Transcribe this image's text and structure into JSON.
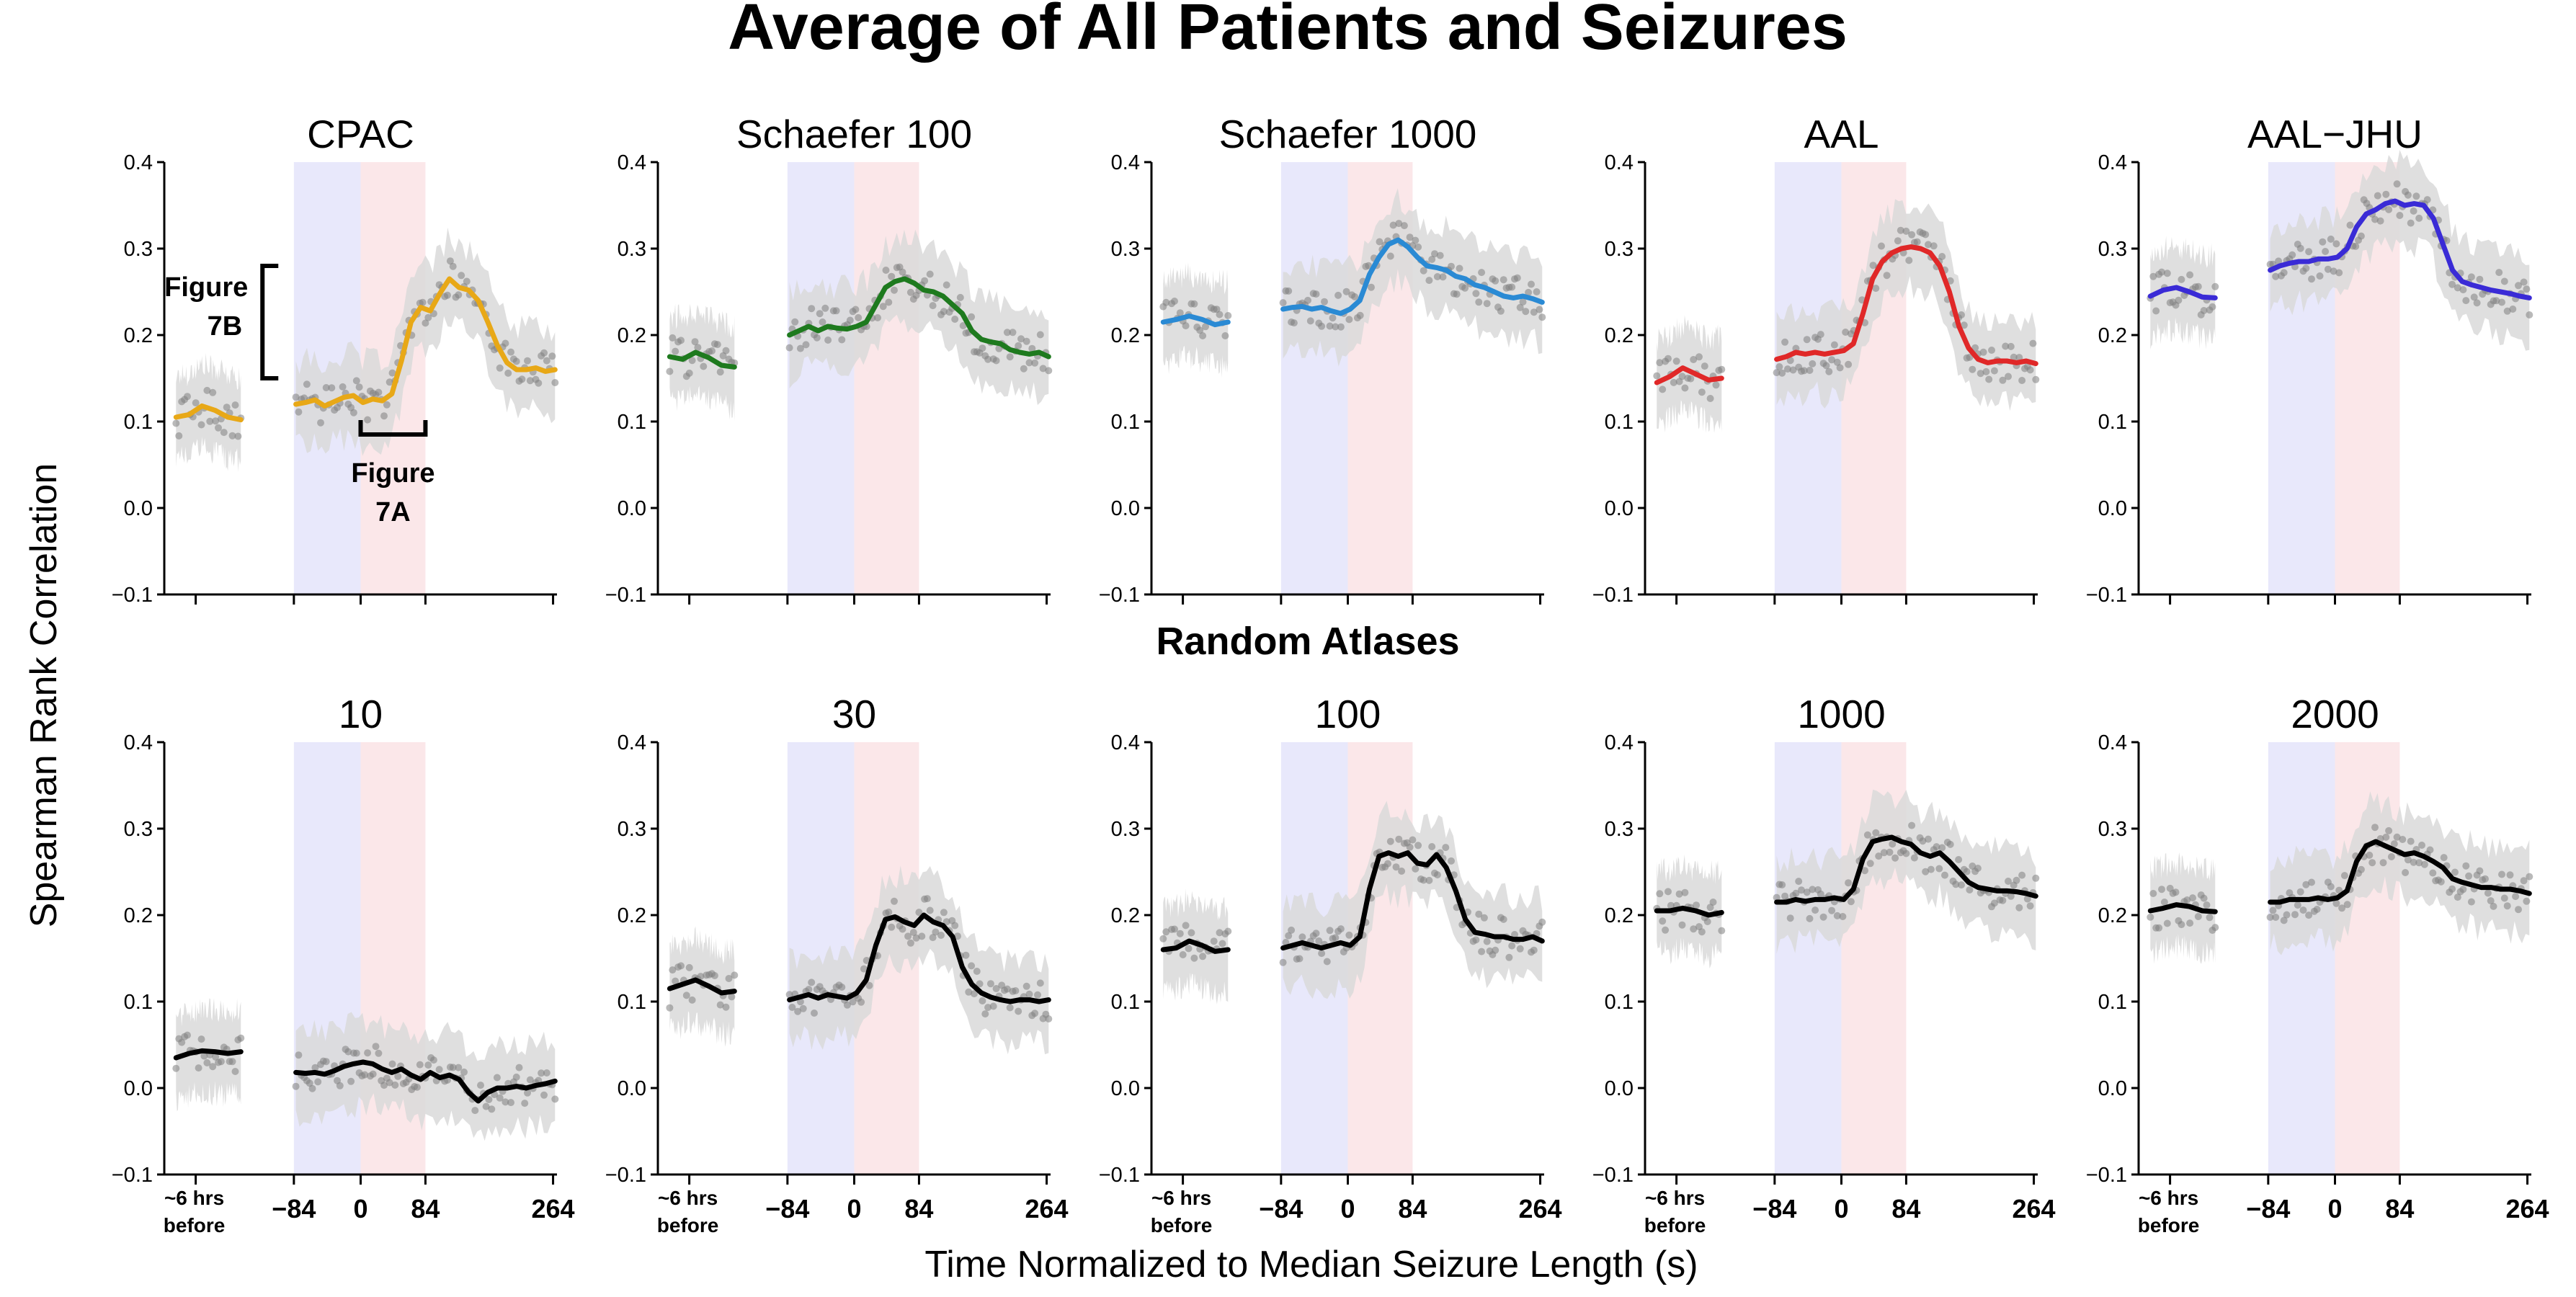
{
  "figure": {
    "title": "Average of All Patients and Seizures",
    "row2_title": "Random Atlases",
    "ylabel": "Spearman Rank Correlation",
    "xlabel": "Time Normalized to Median Seizure Length (s)",
    "colors": {
      "preictal_band": "#e8e8fb",
      "ictal_band": "#fbe7e9",
      "dots": "#808080",
      "error_band": "#d9d9d9"
    }
  },
  "chart_data": [
    {
      "type": "line",
      "title": "CPAC",
      "color": "#e8a817",
      "ylim": [
        -0.1,
        0.4
      ],
      "yticks": [
        "0.4",
        "0.3",
        "0.2",
        "0.1",
        "0.0",
        "−0.1"
      ],
      "xticks": [
        "~6 hrs before",
        "−84",
        "0",
        "84",
        "264"
      ],
      "x_segments": [
        "~6 hrs before",
        "−84 to 0",
        "0 to 84",
        "84 to 264"
      ],
      "before_segment": [
        0.105,
        0.108,
        0.118,
        0.113,
        0.105,
        0.102
      ],
      "window_segment": [
        0.12,
        0.122,
        0.125,
        0.118,
        0.123,
        0.128,
        0.13,
        0.122,
        0.126,
        0.124,
        0.132,
        0.17,
        0.215,
        0.232,
        0.228,
        0.248,
        0.265,
        0.255,
        0.252,
        0.24,
        0.215,
        0.188,
        0.168,
        0.16,
        0.16,
        0.162,
        0.158,
        0.16
      ],
      "annotations": [
        {
          "text_lines": [
            "Figure",
            "7B"
          ],
          "kind": "vertical-bracket"
        },
        {
          "text_lines": [
            "Figure",
            "7A"
          ],
          "kind": "horizontal-bracket"
        }
      ]
    },
    {
      "type": "line",
      "title": "Schaefer 100",
      "color": "#1e7a1e",
      "ylim": [
        -0.1,
        0.4
      ],
      "yticks": [
        "0.4",
        "0.3",
        "0.2",
        "0.1",
        "0.0",
        "−0.1"
      ],
      "xticks": [
        "~6 hrs before",
        "−84",
        "0",
        "84",
        "264"
      ],
      "x_segments": [
        "~6 hrs before",
        "−84 to 0",
        "0 to 84",
        "84 to 264"
      ],
      "before_segment": [
        0.175,
        0.172,
        0.18,
        0.174,
        0.165,
        0.163
      ],
      "window_segment": [
        0.2,
        0.205,
        0.21,
        0.205,
        0.21,
        0.208,
        0.207,
        0.21,
        0.215,
        0.235,
        0.255,
        0.262,
        0.265,
        0.26,
        0.252,
        0.25,
        0.245,
        0.235,
        0.225,
        0.205,
        0.195,
        0.192,
        0.19,
        0.183,
        0.18,
        0.178,
        0.18,
        0.175
      ]
    },
    {
      "type": "line",
      "title": "Schaefer 1000",
      "color": "#2a8ad4",
      "ylim": [
        -0.1,
        0.4
      ],
      "yticks": [
        "0.4",
        "0.3",
        "0.2",
        "0.1",
        "0.0",
        "−0.1"
      ],
      "xticks": [
        "~6 hrs before",
        "−84",
        "0",
        "84",
        "264"
      ],
      "x_segments": [
        "~6 hrs before",
        "−84 to 0",
        "0 to 84",
        "84 to 264"
      ],
      "before_segment": [
        0.215,
        0.218,
        0.222,
        0.218,
        0.212,
        0.215
      ],
      "window_segment": [
        0.23,
        0.232,
        0.233,
        0.23,
        0.232,
        0.228,
        0.225,
        0.23,
        0.24,
        0.27,
        0.29,
        0.305,
        0.31,
        0.302,
        0.29,
        0.28,
        0.278,
        0.275,
        0.268,
        0.265,
        0.258,
        0.255,
        0.25,
        0.245,
        0.243,
        0.245,
        0.242,
        0.238
      ]
    },
    {
      "type": "line",
      "title": "AAL",
      "color": "#e02828",
      "ylim": [
        -0.1,
        0.4
      ],
      "yticks": [
        "0.4",
        "0.3",
        "0.2",
        "0.1",
        "0.0",
        "−0.1"
      ],
      "xticks": [
        "~6 hrs before",
        "−84",
        "0",
        "84",
        "264"
      ],
      "x_segments": [
        "~6 hrs before",
        "−84 to 0",
        "0 to 84",
        "84 to 264"
      ],
      "before_segment": [
        0.145,
        0.152,
        0.162,
        0.155,
        0.148,
        0.15
      ],
      "window_segment": [
        0.172,
        0.175,
        0.18,
        0.178,
        0.18,
        0.178,
        0.18,
        0.182,
        0.19,
        0.225,
        0.265,
        0.285,
        0.295,
        0.3,
        0.302,
        0.3,
        0.295,
        0.28,
        0.25,
        0.21,
        0.185,
        0.172,
        0.168,
        0.17,
        0.17,
        0.168,
        0.17,
        0.167
      ]
    },
    {
      "type": "line",
      "title": "AAL−JHU",
      "color": "#3a2bd6",
      "ylim": [
        -0.1,
        0.4
      ],
      "yticks": [
        "0.4",
        "0.3",
        "0.2",
        "0.1",
        "0.0",
        "−0.1"
      ],
      "xticks": [
        "~6 hrs before",
        "−84",
        "0",
        "84",
        "264"
      ],
      "x_segments": [
        "~6 hrs before",
        "−84 to 0",
        "0 to 84",
        "84 to 264"
      ],
      "before_segment": [
        0.245,
        0.252,
        0.255,
        0.25,
        0.244,
        0.243
      ],
      "window_segment": [
        0.275,
        0.28,
        0.283,
        0.285,
        0.285,
        0.288,
        0.288,
        0.29,
        0.3,
        0.325,
        0.34,
        0.345,
        0.352,
        0.355,
        0.35,
        0.352,
        0.35,
        0.335,
        0.305,
        0.275,
        0.262,
        0.258,
        0.255,
        0.252,
        0.25,
        0.248,
        0.245,
        0.243
      ]
    },
    {
      "type": "line",
      "title": "10",
      "color": "#000000",
      "ylim": [
        -0.1,
        0.4
      ],
      "yticks": [
        "0.4",
        "0.3",
        "0.2",
        "0.1",
        "0.0",
        "−0.1"
      ],
      "xticks": [
        "~6 hrs before",
        "−84",
        "0",
        "84",
        "264"
      ],
      "x_segments": [
        "~6 hrs before",
        "−84 to 0",
        "0 to 84",
        "84 to 264"
      ],
      "before_segment": [
        0.035,
        0.04,
        0.043,
        0.042,
        0.04,
        0.042
      ],
      "window_segment": [
        0.018,
        0.017,
        0.018,
        0.016,
        0.02,
        0.025,
        0.028,
        0.03,
        0.028,
        0.022,
        0.018,
        0.022,
        0.015,
        0.01,
        0.018,
        0.012,
        0.015,
        0.01,
        -0.005,
        -0.015,
        -0.005,
        0.0,
        0.0,
        0.002,
        0.0,
        0.003,
        0.005,
        0.008
      ]
    },
    {
      "type": "line",
      "title": "30",
      "color": "#000000",
      "ylim": [
        -0.1,
        0.4
      ],
      "yticks": [
        "0.4",
        "0.3",
        "0.2",
        "0.1",
        "0.0",
        "−0.1"
      ],
      "xticks": [
        "~6 hrs before",
        "−84",
        "0",
        "84",
        "264"
      ],
      "x_segments": [
        "~6 hrs before",
        "−84 to 0",
        "0 to 84",
        "84 to 264"
      ],
      "before_segment": [
        0.115,
        0.12,
        0.125,
        0.118,
        0.11,
        0.112
      ],
      "window_segment": [
        0.102,
        0.105,
        0.108,
        0.104,
        0.108,
        0.106,
        0.104,
        0.11,
        0.125,
        0.165,
        0.195,
        0.198,
        0.192,
        0.188,
        0.2,
        0.192,
        0.188,
        0.175,
        0.14,
        0.12,
        0.11,
        0.105,
        0.102,
        0.1,
        0.102,
        0.102,
        0.1,
        0.102
      ]
    },
    {
      "type": "line",
      "title": "100",
      "color": "#000000",
      "ylim": [
        -0.1,
        0.4
      ],
      "yticks": [
        "0.4",
        "0.3",
        "0.2",
        "0.1",
        "0.0",
        "−0.1"
      ],
      "xticks": [
        "~6 hrs before",
        "−84",
        "0",
        "84",
        "264"
      ],
      "x_segments": [
        "~6 hrs before",
        "−84 to 0",
        "0 to 84",
        "84 to 264"
      ],
      "before_segment": [
        0.16,
        0.162,
        0.17,
        0.165,
        0.158,
        0.16
      ],
      "window_segment": [
        0.162,
        0.165,
        0.168,
        0.165,
        0.162,
        0.165,
        0.168,
        0.165,
        0.175,
        0.23,
        0.268,
        0.272,
        0.268,
        0.272,
        0.26,
        0.258,
        0.27,
        0.255,
        0.228,
        0.195,
        0.18,
        0.178,
        0.175,
        0.175,
        0.172,
        0.172,
        0.175,
        0.17
      ]
    },
    {
      "type": "line",
      "title": "1000",
      "color": "#000000",
      "ylim": [
        -0.1,
        0.4
      ],
      "yticks": [
        "0.4",
        "0.3",
        "0.2",
        "0.1",
        "0.0",
        "−0.1"
      ],
      "xticks": [
        "~6 hrs before",
        "−84",
        "0",
        "84",
        "264"
      ],
      "x_segments": [
        "~6 hrs before",
        "−84 to 0",
        "0 to 84",
        "84 to 264"
      ],
      "before_segment": [
        0.205,
        0.205,
        0.208,
        0.205,
        0.2,
        0.203
      ],
      "window_segment": [
        0.215,
        0.215,
        0.218,
        0.216,
        0.218,
        0.218,
        0.22,
        0.218,
        0.23,
        0.265,
        0.285,
        0.288,
        0.29,
        0.285,
        0.282,
        0.272,
        0.268,
        0.272,
        0.262,
        0.25,
        0.238,
        0.232,
        0.23,
        0.228,
        0.228,
        0.227,
        0.225,
        0.222
      ]
    },
    {
      "type": "line",
      "title": "2000",
      "color": "#000000",
      "ylim": [
        -0.1,
        0.4
      ],
      "yticks": [
        "0.4",
        "0.3",
        "0.2",
        "0.1",
        "0.0",
        "−0.1"
      ],
      "xticks": [
        "~6 hrs before",
        "−84",
        "0",
        "84",
        "264"
      ],
      "x_segments": [
        "~6 hrs before",
        "−84 to 0",
        "0 to 84",
        "84 to 264"
      ],
      "before_segment": [
        0.205,
        0.208,
        0.212,
        0.21,
        0.205,
        0.204
      ],
      "window_segment": [
        0.215,
        0.215,
        0.218,
        0.218,
        0.218,
        0.22,
        0.218,
        0.22,
        0.228,
        0.262,
        0.28,
        0.285,
        0.28,
        0.275,
        0.27,
        0.272,
        0.268,
        0.262,
        0.255,
        0.242,
        0.238,
        0.235,
        0.232,
        0.232,
        0.23,
        0.23,
        0.228,
        0.225
      ]
    }
  ]
}
